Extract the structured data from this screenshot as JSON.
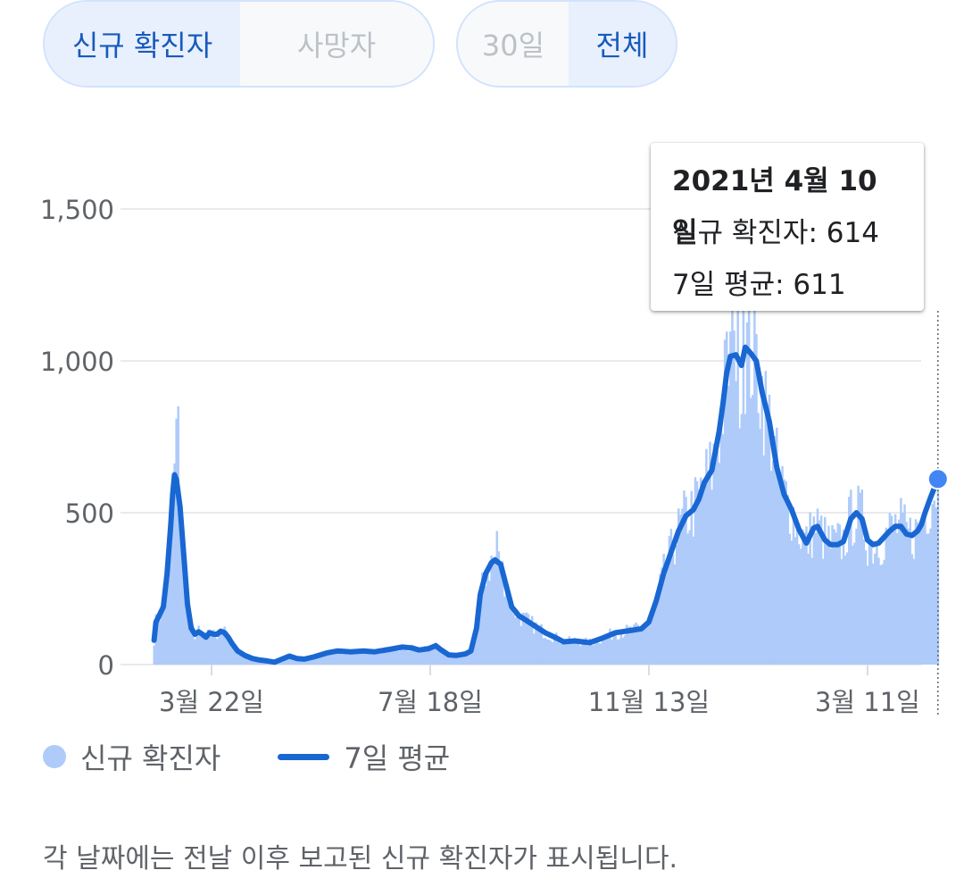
{
  "toggles": {
    "metric": {
      "selected": "신규 확진자",
      "other": "사망자"
    },
    "range": {
      "inactive": "30일",
      "selected": "전체"
    }
  },
  "tooltip": {
    "date": "2021년 4월 10일",
    "new_cases": "신규 확진자: 614",
    "avg7": "7일 평균: 611"
  },
  "legend": {
    "bars": "신규 확진자",
    "line": "7일 평균"
  },
  "footnote": "각 날짜에는 전날 이후 보고된 신규 확진자가 표시됩니다.",
  "colors": {
    "bars": "#aecbfa",
    "line": "#1967d2",
    "highlight": "#4285f4",
    "grid": "#e8eaed"
  },
  "chart_data": {
    "type": "bar",
    "title": "",
    "y_ticks": [
      0,
      500,
      1000,
      1500
    ],
    "ylim": [
      0,
      1500
    ],
    "x_ticks": [
      {
        "label": "3월 22일",
        "day": 0
      },
      {
        "label": "7월 18일",
        "day": 118
      },
      {
        "label": "11월 13일",
        "day": 236
      },
      {
        "label": "3월 11일",
        "day": 354
      }
    ],
    "x_range_days": [
      -31,
      384
    ],
    "series": [
      {
        "name": "신규 확진자",
        "kind": "bar"
      },
      {
        "name": "7일 평균",
        "kind": "line",
        "points": [
          [
            -31,
            80
          ],
          [
            -30,
            140
          ],
          [
            -28,
            165
          ],
          [
            -26,
            190
          ],
          [
            -24,
            300
          ],
          [
            -22,
            460
          ],
          [
            -21,
            560
          ],
          [
            -20,
            625
          ],
          [
            -19,
            610
          ],
          [
            -17,
            520
          ],
          [
            -15,
            360
          ],
          [
            -13,
            200
          ],
          [
            -11,
            120
          ],
          [
            -9,
            100
          ],
          [
            -7,
            108
          ],
          [
            -5,
            100
          ],
          [
            -3,
            90
          ],
          [
            -1,
            105
          ],
          [
            1,
            100
          ],
          [
            3,
            100
          ],
          [
            5,
            110
          ],
          [
            7,
            105
          ],
          [
            9,
            90
          ],
          [
            11,
            70
          ],
          [
            14,
            45
          ],
          [
            18,
            30
          ],
          [
            22,
            20
          ],
          [
            26,
            15
          ],
          [
            30,
            12
          ],
          [
            34,
            8
          ],
          [
            38,
            18
          ],
          [
            42,
            28
          ],
          [
            46,
            20
          ],
          [
            50,
            18
          ],
          [
            55,
            25
          ],
          [
            62,
            38
          ],
          [
            68,
            45
          ],
          [
            75,
            42
          ],
          [
            82,
            45
          ],
          [
            88,
            42
          ],
          [
            96,
            50
          ],
          [
            103,
            58
          ],
          [
            108,
            55
          ],
          [
            112,
            48
          ],
          [
            117,
            52
          ],
          [
            121,
            62
          ],
          [
            124,
            48
          ],
          [
            128,
            32
          ],
          [
            132,
            30
          ],
          [
            137,
            35
          ],
          [
            140,
            45
          ],
          [
            143,
            120
          ],
          [
            145,
            230
          ],
          [
            148,
            300
          ],
          [
            151,
            335
          ],
          [
            153,
            345
          ],
          [
            156,
            330
          ],
          [
            159,
            260
          ],
          [
            162,
            190
          ],
          [
            166,
            160
          ],
          [
            170,
            145
          ],
          [
            175,
            125
          ],
          [
            180,
            105
          ],
          [
            186,
            88
          ],
          [
            190,
            75
          ],
          [
            196,
            78
          ],
          [
            204,
            72
          ],
          [
            210,
            85
          ],
          [
            218,
            105
          ],
          [
            226,
            112
          ],
          [
            232,
            118
          ],
          [
            236,
            140
          ],
          [
            240,
            210
          ],
          [
            244,
            300
          ],
          [
            248,
            370
          ],
          [
            252,
            440
          ],
          [
            256,
            490
          ],
          [
            260,
            510
          ],
          [
            263,
            545
          ],
          [
            266,
            600
          ],
          [
            270,
            640
          ],
          [
            274,
            770
          ],
          [
            276,
            860
          ],
          [
            278,
            960
          ],
          [
            280,
            1015
          ],
          [
            283,
            1020
          ],
          [
            286,
            985
          ],
          [
            288,
            1045
          ],
          [
            291,
            1025
          ],
          [
            294,
            1000
          ],
          [
            297,
            900
          ],
          [
            301,
            800
          ],
          [
            305,
            650
          ],
          [
            309,
            560
          ],
          [
            313,
            510
          ],
          [
            317,
            445
          ],
          [
            321,
            400
          ],
          [
            325,
            450
          ],
          [
            327,
            455
          ],
          [
            331,
            410
          ],
          [
            334,
            395
          ],
          [
            338,
            395
          ],
          [
            341,
            405
          ],
          [
            345,
            480
          ],
          [
            348,
            500
          ],
          [
            351,
            480
          ],
          [
            354,
            410
          ],
          [
            357,
            395
          ],
          [
            360,
            400
          ],
          [
            363,
            420
          ],
          [
            366,
            440
          ],
          [
            369,
            455
          ],
          [
            372,
            455
          ],
          [
            375,
            430
          ],
          [
            378,
            425
          ],
          [
            381,
            440
          ],
          [
            383,
            460
          ],
          [
            385,
            500
          ],
          [
            388,
            550
          ],
          [
            390,
            580
          ],
          [
            392,
            611
          ]
        ]
      }
    ],
    "highlight": {
      "date": "2021년 4월 10일",
      "new_cases": 614,
      "avg7": 611
    }
  }
}
